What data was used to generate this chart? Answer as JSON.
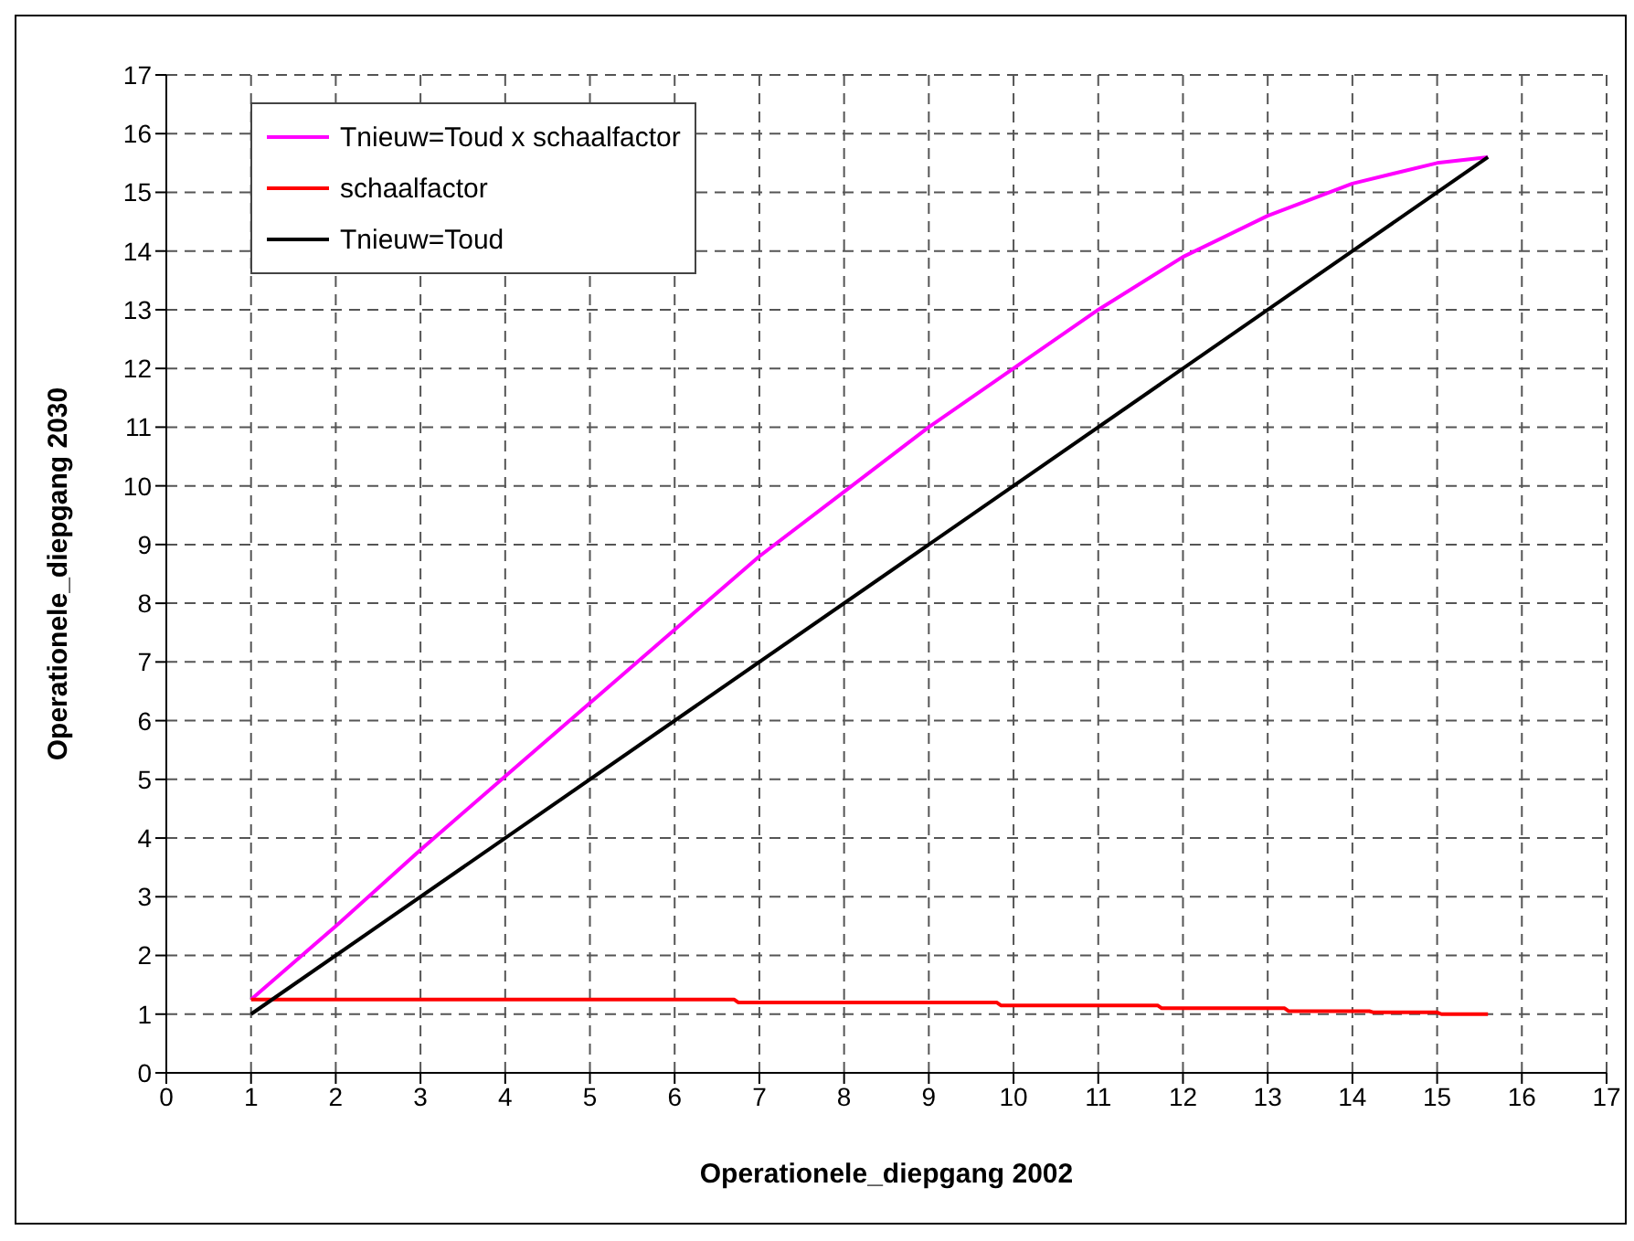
{
  "chart_data": {
    "type": "line",
    "xlabel": "Operationele_diepgang 2002",
    "ylabel": "Operationele_diepgang 2030",
    "xlim": [
      0,
      17
    ],
    "xticks": [
      0,
      1,
      2,
      3,
      4,
      5,
      6,
      7,
      8,
      9,
      10,
      11,
      12,
      13,
      14,
      15,
      16,
      17
    ],
    "ylim": [
      0,
      17
    ],
    "yticks": [
      0,
      1,
      2,
      3,
      4,
      5,
      6,
      7,
      8,
      9,
      10,
      11,
      12,
      13,
      14,
      15,
      16,
      17
    ],
    "grid": true,
    "legend": "top left",
    "marker": "none",
    "line_style": "solid",
    "series": [
      {
        "name": "Tnieuw=Toud x schaalfactor",
        "color": "#ff00ff",
        "x": [
          1,
          2,
          3,
          4,
          5,
          6,
          7,
          8,
          9,
          10,
          11,
          12,
          13,
          14,
          15,
          15.6
        ],
        "values": [
          1.25,
          2.5,
          3.8,
          5.05,
          6.3,
          7.55,
          8.8,
          9.9,
          11,
          12,
          13,
          13.9,
          14.6,
          15.15,
          15.5,
          15.6
        ]
      },
      {
        "name": "schaalfactor",
        "color": "#ff0000",
        "x": [
          1,
          6.7,
          6.75,
          9.8,
          9.85,
          11.7,
          11.75,
          13.2,
          13.25,
          14.2,
          14.25,
          15,
          15.05,
          15.6
        ],
        "values": [
          1.25,
          1.25,
          1.2,
          1.2,
          1.15,
          1.15,
          1.1,
          1.1,
          1.05,
          1.05,
          1.03,
          1.03,
          1,
          1
        ]
      },
      {
        "name": "Tnieuw=Toud",
        "color": "#000000",
        "x": [
          1,
          15.6
        ],
        "values": [
          1,
          15.6
        ]
      }
    ]
  }
}
